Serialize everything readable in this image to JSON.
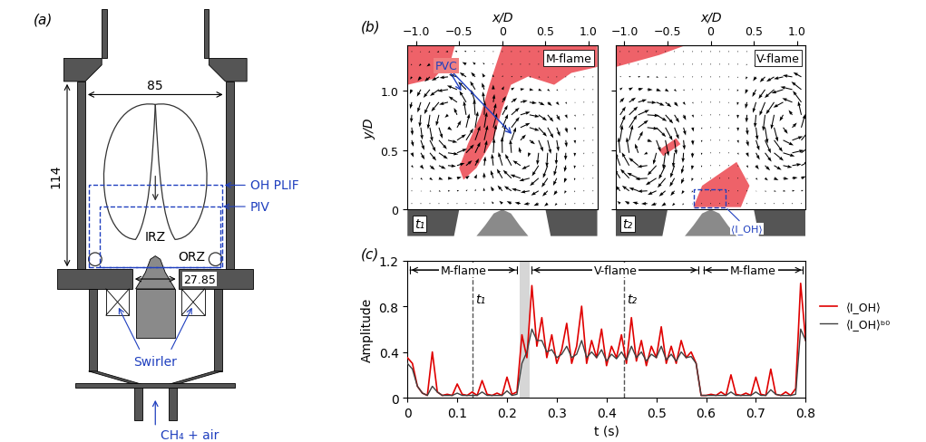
{
  "panel_a": {
    "label": "(a)",
    "dimensions": {
      "width": 85,
      "height": 114,
      "nozzle": 27.85
    },
    "labels": {
      "plif": "OH PLIF",
      "piv": "PIV",
      "irz": "IRZ",
      "orz": "ORZ",
      "swirler": "Swirler",
      "inlet": "CH₄ + air"
    }
  },
  "panel_b": {
    "label": "(b)",
    "x_label": "x/D",
    "y_label": "y/D",
    "xlim": [
      -1.1,
      1.1
    ],
    "ylim": [
      0,
      1.38
    ],
    "xticks": [
      {
        "value": -1.0,
        "label": "−1.0"
      },
      {
        "value": -0.5,
        "label": "−0.5"
      },
      0,
      0.5,
      1.0
    ],
    "yticks": [
      0,
      0.5,
      1.0
    ],
    "images": [
      {
        "name": "M-flame",
        "time": "t₁",
        "oh_regions": [
          [
            [
              -0.45,
              0.25
            ],
            [
              -0.3,
              0.35
            ],
            [
              -0.1,
              0.6
            ],
            [
              0.0,
              0.85
            ],
            [
              0.1,
              1.05
            ],
            [
              0.3,
              1.12
            ],
            [
              0.6,
              1.05
            ],
            [
              0.8,
              1.15
            ],
            [
              1.1,
              1.2
            ],
            [
              1.1,
              1.38
            ],
            [
              0.0,
              1.38
            ],
            [
              -0.15,
              1.05
            ],
            [
              -0.25,
              0.8
            ],
            [
              -0.4,
              0.55
            ],
            [
              -0.5,
              0.35
            ]
          ],
          [
            [
              -1.1,
              1.05
            ],
            [
              -0.8,
              1.1
            ],
            [
              -0.6,
              1.25
            ],
            [
              -0.55,
              1.38
            ],
            [
              -1.1,
              1.38
            ]
          ]
        ],
        "vortices": [
          {
            "x": -0.6,
            "y": 0.75,
            "circulation": 1
          },
          {
            "x": 0.27,
            "y": 0.5,
            "circulation": -1
          }
        ],
        "annotation": {
          "text": "PVC",
          "targets": [
            [
              -0.46,
              0.98
            ],
            [
              0.13,
              0.62
            ]
          ]
        }
      },
      {
        "name": "V-flame",
        "time": "t₂",
        "oh_regions": [
          [
            [
              -0.2,
              0.02
            ],
            [
              0.35,
              0.02
            ],
            [
              0.45,
              0.2
            ],
            [
              0.3,
              0.4
            ],
            [
              0.1,
              0.3
            ],
            [
              -0.1,
              0.2
            ]
          ],
          [
            [
              -0.6,
              0.5
            ],
            [
              -0.4,
              0.6
            ],
            [
              -0.35,
              0.55
            ],
            [
              -0.55,
              0.45
            ]
          ],
          [
            [
              -1.1,
              1.2
            ],
            [
              -0.6,
              1.3
            ],
            [
              -0.3,
              1.38
            ],
            [
              -1.1,
              1.38
            ]
          ]
        ],
        "vortices": [
          {
            "x": -0.75,
            "y": 0.52,
            "circulation": -1
          },
          {
            "x": 0.9,
            "y": 0.75,
            "circulation": 1
          }
        ],
        "probe": {
          "label": "⟨I_OH⟩",
          "x": [
            -0.2,
            0.17
          ],
          "y": [
            0.02,
            0.17
          ]
        }
      }
    ]
  },
  "chart_data": {
    "type": "line",
    "label": "(c)",
    "x_label": "t (s)",
    "y_label": "Amplitude",
    "x": [
      0,
      0.01,
      0.02,
      0.03,
      0.04,
      0.05,
      0.06,
      0.07,
      0.08,
      0.09,
      0.1,
      0.11,
      0.12,
      0.13,
      0.14,
      0.15,
      0.16,
      0.17,
      0.18,
      0.19,
      0.2,
      0.21,
      0.22,
      0.23,
      0.24,
      0.25,
      0.26,
      0.27,
      0.28,
      0.29,
      0.3,
      0.31,
      0.32,
      0.33,
      0.34,
      0.35,
      0.36,
      0.37,
      0.38,
      0.39,
      0.4,
      0.41,
      0.42,
      0.43,
      0.44,
      0.45,
      0.46,
      0.47,
      0.48,
      0.49,
      0.5,
      0.51,
      0.52,
      0.53,
      0.54,
      0.55,
      0.56,
      0.57,
      0.58,
      0.59,
      0.6,
      0.61,
      0.62,
      0.63,
      0.64,
      0.65,
      0.66,
      0.67,
      0.68,
      0.69,
      0.7,
      0.71,
      0.72,
      0.73,
      0.74,
      0.75,
      0.76,
      0.77,
      0.78,
      0.79,
      0.8
    ],
    "series": [
      {
        "name": "⟨I_OH⟩",
        "color": "#e00000",
        "values": [
          0.35,
          0.3,
          0.1,
          0.04,
          0.02,
          0.4,
          0.05,
          0.02,
          0.03,
          0.02,
          0.12,
          0.03,
          0.02,
          0.05,
          0.02,
          0.15,
          0.03,
          0.02,
          0.04,
          0.02,
          0.18,
          0.03,
          0.05,
          0.55,
          0.35,
          0.98,
          0.45,
          0.7,
          0.35,
          0.55,
          0.3,
          0.42,
          0.65,
          0.3,
          0.45,
          0.8,
          0.3,
          0.5,
          0.35,
          0.6,
          0.28,
          0.45,
          0.35,
          0.55,
          0.3,
          0.7,
          0.32,
          0.5,
          0.28,
          0.45,
          0.35,
          0.62,
          0.3,
          0.45,
          0.3,
          0.5,
          0.35,
          0.4,
          0.3,
          0.02,
          0.02,
          0.03,
          0.02,
          0.05,
          0.02,
          0.2,
          0.03,
          0.02,
          0.04,
          0.02,
          0.18,
          0.03,
          0.02,
          0.25,
          0.03,
          0.02,
          0.05,
          0.02,
          0.08,
          1.0,
          0.5
        ]
      },
      {
        "name": "⟨I_OH⟩ᵇ⁰",
        "color": "#404040",
        "values": [
          0.3,
          0.25,
          0.1,
          0.04,
          0.02,
          0.1,
          0.05,
          0.02,
          0.02,
          0.02,
          0.04,
          0.02,
          0.02,
          0.02,
          0.02,
          0.05,
          0.02,
          0.02,
          0.02,
          0.02,
          0.06,
          0.02,
          0.03,
          0.3,
          0.4,
          0.6,
          0.5,
          0.5,
          0.4,
          0.42,
          0.35,
          0.38,
          0.45,
          0.35,
          0.38,
          0.5,
          0.35,
          0.4,
          0.35,
          0.42,
          0.32,
          0.38,
          0.34,
          0.4,
          0.33,
          0.45,
          0.35,
          0.4,
          0.32,
          0.38,
          0.35,
          0.45,
          0.33,
          0.38,
          0.32,
          0.4,
          0.35,
          0.36,
          0.3,
          0.02,
          0.02,
          0.02,
          0.02,
          0.02,
          0.02,
          0.05,
          0.02,
          0.02,
          0.02,
          0.02,
          0.05,
          0.02,
          0.02,
          0.07,
          0.03,
          0.02,
          0.02,
          0.02,
          0.03,
          0.6,
          0.5
        ]
      }
    ],
    "xlim": [
      0,
      0.8
    ],
    "xticks": [
      0,
      0.1,
      0.2,
      0.3,
      0.4,
      0.5,
      0.6,
      0.7,
      0.8
    ],
    "ylim": [
      0,
      1.2
    ],
    "yticks": [
      0,
      0.4,
      0.8,
      1.2
    ],
    "legend": "right",
    "regions": [
      {
        "label": "M-flame",
        "start": 0,
        "end": 0.225
      },
      {
        "label": "V-flame",
        "start": 0.245,
        "end": 0.59
      },
      {
        "label": "M-flame",
        "start": 0.59,
        "end": 0.8
      }
    ],
    "highlight": [
      0.225,
      0.245
    ],
    "markers": [
      {
        "label": "t₁",
        "t": 0.13
      },
      {
        "label": "t₂",
        "t": 0.435
      }
    ]
  }
}
